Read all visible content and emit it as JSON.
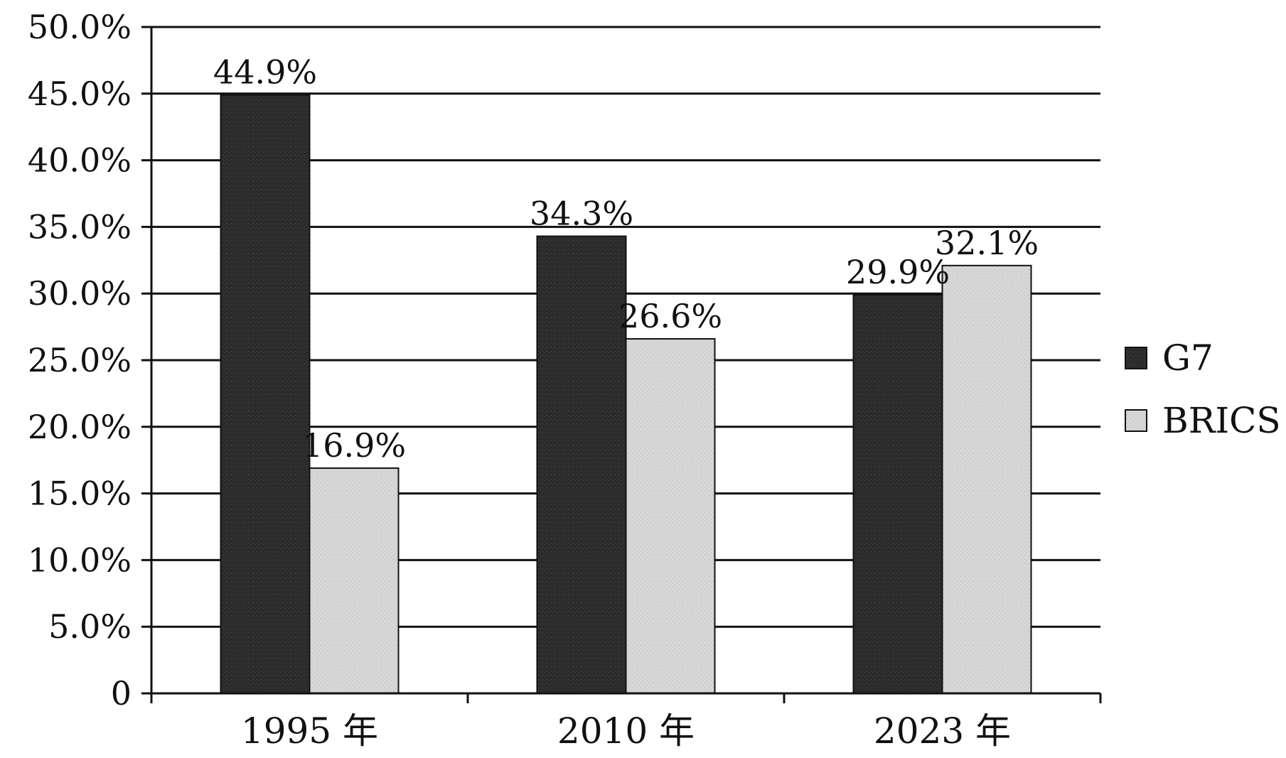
{
  "chart_data": {
    "type": "bar",
    "categories": [
      "1995 年",
      "2010 年",
      "2023 年"
    ],
    "series": [
      {
        "name": "G7",
        "values": [
          44.9,
          34.3,
          29.9
        ],
        "labels": [
          "44.9%",
          "34.3%",
          "29.9%"
        ],
        "color": "#2b2b2b"
      },
      {
        "name": "BRICS",
        "values": [
          16.9,
          26.6,
          32.1
        ],
        "labels": [
          "16.9%",
          "26.6%",
          "32.1%"
        ],
        "color": "#d6d6d6"
      }
    ],
    "ylim": [
      0,
      50
    ],
    "yticks": [
      "0",
      "5.0%",
      "10.0%",
      "15.0%",
      "20.0%",
      "25.0%",
      "30.0%",
      "35.0%",
      "40.0%",
      "45.0%",
      "50.0%"
    ],
    "grid": true,
    "legend": "right",
    "title": "",
    "xlabel": "",
    "ylabel": ""
  }
}
